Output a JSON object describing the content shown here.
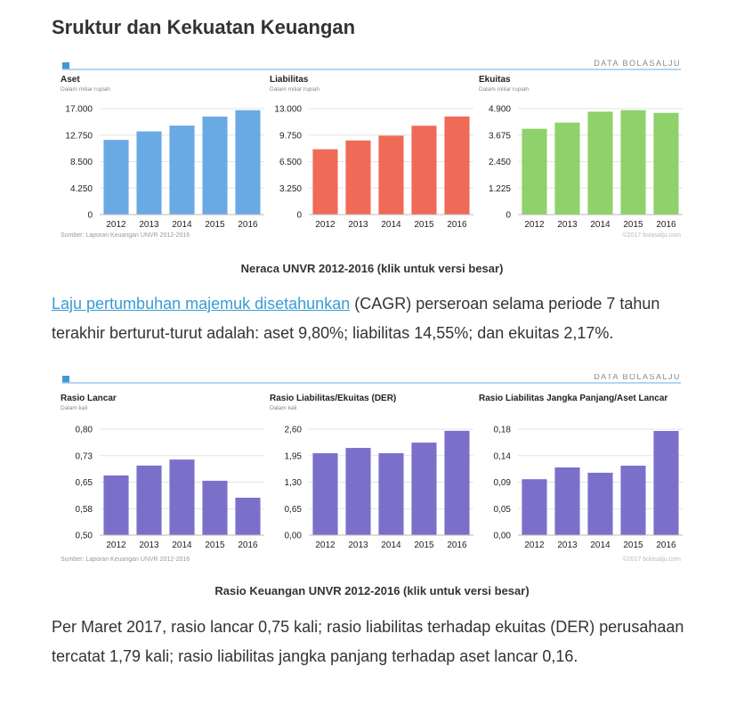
{
  "title": "Sruktur dan Kekuatan Keuangan",
  "chart_data": [
    {
      "type": "bar",
      "title": "Aset",
      "subtitle": "Dalam miliar rupiah",
      "categories": [
        "2012",
        "2013",
        "2014",
        "2015",
        "2016"
      ],
      "values": [
        11985,
        13348,
        14280,
        15729,
        16745
      ],
      "color": "#6aaae4",
      "ylim": [
        0,
        17000
      ],
      "yticks": [
        0,
        {
          "value": 4250,
          "label": "4.250"
        },
        {
          "value": 8500,
          "label": "8.500"
        },
        {
          "value": 12750,
          "label": "12.750"
        },
        {
          "value": 17000,
          "label": "17.000"
        }
      ],
      "grid": true
    },
    {
      "type": "bar",
      "title": "Liabilitas",
      "subtitle": "Dalam miliar rupiah",
      "categories": [
        "2012",
        "2013",
        "2014",
        "2015",
        "2016"
      ],
      "values": [
        8016,
        9094,
        9681,
        10902,
        12041
      ],
      "color": "#f06a58",
      "ylim": [
        0,
        13000
      ],
      "yticks": [
        0,
        {
          "value": 3250,
          "label": "3.250"
        },
        {
          "value": 6500,
          "label": "6.500"
        },
        {
          "value": 9750,
          "label": "9.750"
        },
        {
          "value": 13000,
          "label": "13.000"
        }
      ],
      "grid": true
    },
    {
      "type": "bar",
      "title": "Ekuitas",
      "subtitle": "Dalam miliar rupiah",
      "categories": [
        "2012",
        "2013",
        "2014",
        "2015",
        "2016"
      ],
      "values": [
        3968,
        4254,
        4760,
        4828,
        4704
      ],
      "color": "#8fd16b",
      "ylim": [
        0,
        4900
      ],
      "yticks": [
        0,
        {
          "value": 1225,
          "label": "1.225"
        },
        {
          "value": 2450,
          "label": "2.450"
        },
        {
          "value": 3675,
          "label": "3.675"
        },
        {
          "value": 4900,
          "label": "4.900"
        }
      ],
      "grid": true
    },
    {
      "type": "bar",
      "title": "Rasio Lancar",
      "subtitle": "Dalam kali",
      "categories": [
        "2012",
        "2013",
        "2014",
        "2015",
        "2016"
      ],
      "values": [
        0.669,
        0.697,
        0.714,
        0.654,
        0.606
      ],
      "color": "#7b70c9",
      "ylim": [
        0.5,
        0.8
      ],
      "yticks": [
        {
          "value": 0.5,
          "label": "0,50"
        },
        {
          "value": 0.575,
          "label": "0,58"
        },
        {
          "value": 0.65,
          "label": "0,65"
        },
        {
          "value": 0.725,
          "label": "0,73"
        },
        {
          "value": 0.8,
          "label": "0,80"
        }
      ],
      "grid": true
    },
    {
      "type": "bar",
      "title": "Rasio Liabilitas/Ekuitas (DER)",
      "subtitle": "Dalam kali",
      "categories": [
        "2012",
        "2013",
        "2014",
        "2015",
        "2016"
      ],
      "values": [
        2.01,
        2.14,
        2.01,
        2.27,
        2.56
      ],
      "color": "#7b70c9",
      "ylim": [
        0,
        2.6
      ],
      "yticks": [
        {
          "value": 0,
          "label": "0,00"
        },
        {
          "value": 0.65,
          "label": "0,65"
        },
        {
          "value": 1.3,
          "label": "1,30"
        },
        {
          "value": 1.95,
          "label": "1,95"
        },
        {
          "value": 2.6,
          "label": "2,60"
        }
      ],
      "grid": true
    },
    {
      "type": "bar",
      "title": "Rasio Liabilitas Jangka Panjang/Aset Lancar",
      "categories": [
        "2012",
        "2013",
        "2014",
        "2015",
        "2016"
      ],
      "values": [
        0.095,
        0.115,
        0.106,
        0.118,
        0.177
      ],
      "color": "#7b70c9",
      "ylim": [
        0,
        0.18
      ],
      "yticks": [
        {
          "value": 0,
          "label": "0,00"
        },
        {
          "value": 0.045,
          "label": "0,05"
        },
        {
          "value": 0.09,
          "label": "0,09"
        },
        {
          "value": 0.135,
          "label": "0,14"
        },
        {
          "value": 0.18,
          "label": "0,18"
        }
      ],
      "grid": true
    }
  ],
  "figures": [
    {
      "brand": "DATA BOLASALJU",
      "source": "Sumber: Laporan Keuangan UNVR 2012-2016",
      "credit": "©2017 bolasalju.com",
      "caption": "Neraca UNVR 2012-2016 (klik untuk versi besar)"
    },
    {
      "brand": "DATA BOLASALJU",
      "source": "Sumber: Laporan Keuangan UNVR 2012-2016",
      "credit": "©2017 bolasalju.com",
      "caption": "Rasio Keuangan UNVR 2012-2016 (klik untuk versi besar)"
    }
  ],
  "paragraphs": [
    {
      "link": "Laju pertumbuhan majemuk disetahunkan",
      "rest": "(CAGR) perseroan selama periode 7 tahun terakhir berturut-turut adalah: aset 9,80%; liabilitas 14,55%; dan ekuitas 2,17%."
    },
    {
      "rest": "Per Maret 2017, rasio lancar 0,75 kali; rasio liabilitas terhadap ekuitas (DER) perusahaan tercatat 1,79 kali; rasio liabilitas jangka panjang terhadap aset lancar 0,16."
    }
  ]
}
